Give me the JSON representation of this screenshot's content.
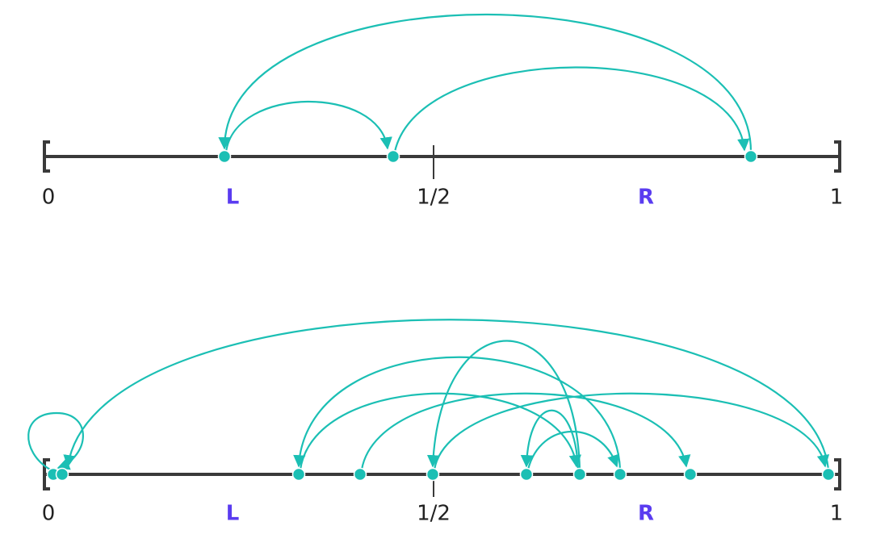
{
  "top": {
    "labels": [
      "0",
      "L",
      "1/2",
      "R",
      "1"
    ]
  },
  "bottom": {
    "labels": [
      "0",
      "L",
      "1/2",
      "R",
      "1"
    ]
  }
}
